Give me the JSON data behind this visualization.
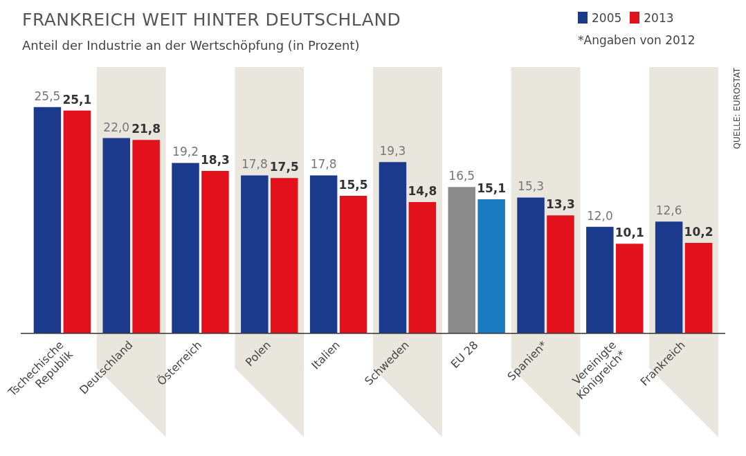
{
  "chart_data": {
    "type": "bar",
    "title": "FRANKREICH WEIT HINTER DEUTSCHLAND",
    "subtitle": "Anteil der Industrie an der Wertschöpfung (in Prozent)",
    "categories": [
      "Tschechische Republik",
      "Deutschland",
      "Österreich",
      "Polen",
      "Italien",
      "Schweden",
      "EU 28",
      "Spanien*",
      "Vereinigte Königreich*",
      "Frankreich"
    ],
    "series": [
      {
        "name": "2005",
        "color": "#1b3a8c",
        "colors": [
          "#1b3a8c",
          "#1b3a8c",
          "#1b3a8c",
          "#1b3a8c",
          "#1b3a8c",
          "#1b3a8c",
          "#8c8c8c",
          "#1b3a8c",
          "#1b3a8c",
          "#1b3a8c"
        ],
        "values": [
          25.5,
          22.0,
          19.2,
          17.8,
          17.8,
          19.3,
          16.5,
          15.3,
          12.0,
          12.6
        ],
        "value_labels": [
          "25,5",
          "22,0",
          "19,2",
          "17,8",
          "17,8",
          "19,3",
          "16,5",
          "15,3",
          "12,0",
          "12,6"
        ]
      },
      {
        "name": "2013",
        "color": "#e3111b",
        "colors": [
          "#e3111b",
          "#e3111b",
          "#e3111b",
          "#e3111b",
          "#e3111b",
          "#e3111b",
          "#1a7ac0",
          "#e3111b",
          "#e3111b",
          "#e3111b"
        ],
        "values": [
          25.1,
          21.8,
          18.3,
          17.5,
          15.5,
          14.8,
          15.1,
          13.3,
          10.1,
          10.2
        ],
        "value_labels": [
          "25,1",
          "21,8",
          "18,3",
          "17,5",
          "15,5",
          "14,8",
          "15,1",
          "13,3",
          "10,1",
          "10,2"
        ]
      }
    ],
    "tick_labels": "x",
    "grid": false,
    "legend": "top right",
    "bands": [
      {
        "axis": "x",
        "from": "Deutschland",
        "to": "Deutschland",
        "color": "#e9e6dd"
      },
      {
        "axis": "x",
        "from": "Polen",
        "to": "Polen",
        "color": "#e9e6dd"
      },
      {
        "axis": "x",
        "from": "Schweden",
        "to": "Schweden",
        "color": "#e9e6dd"
      },
      {
        "axis": "x",
        "from": "Spanien*",
        "to": "Spanien*",
        "color": "#e9e6dd"
      },
      {
        "axis": "x",
        "from": "Frankreich",
        "to": "Frankreich",
        "color": "#e9e6dd"
      }
    ],
    "annotations": [
      "*Angaben von 2012",
      "QUELLE: EUROSTAT"
    ]
  }
}
